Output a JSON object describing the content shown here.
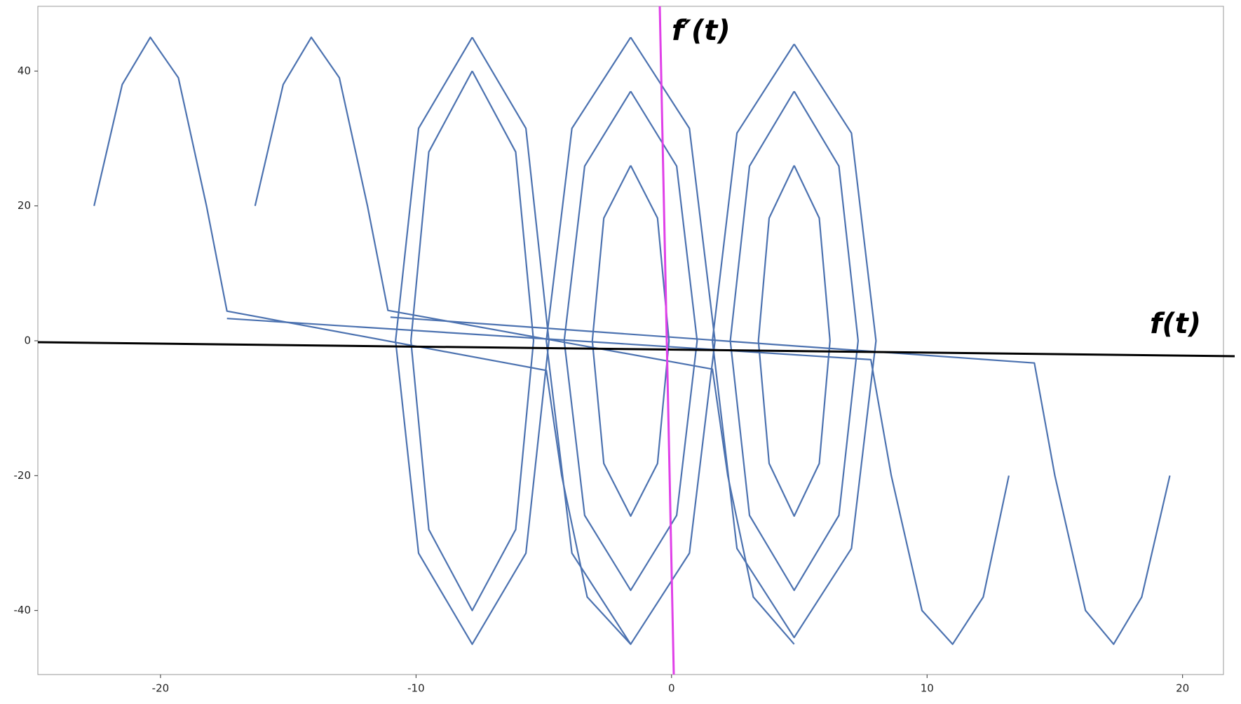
{
  "chart_data": {
    "type": "line",
    "color": "#4c72b0",
    "xlim": [
      -24.8,
      21.6
    ],
    "ylim": [
      -49.5,
      49.6
    ],
    "xticks": [
      -20,
      -10,
      0,
      10,
      20
    ],
    "yticks": [
      -40,
      -20,
      0,
      20,
      40
    ],
    "annotations": [
      "f′(t)",
      "f(t)"
    ],
    "series": [
      {
        "x": [
          -22.6,
          -21.5,
          -20.4,
          -19.3,
          -18.2,
          -17.4,
          -4.9,
          -4.3,
          -3.3,
          -1.6
        ],
        "values": [
          20,
          38,
          45,
          39,
          20,
          4.4,
          -4.4,
          -20,
          -38,
          -45
        ]
      },
      {
        "x": [
          -16.3,
          -15.2,
          -14.1,
          -13,
          -11.9,
          -11.1,
          1.6,
          2.2,
          3.2,
          4.8
        ],
        "values": [
          20,
          38,
          45,
          39,
          20,
          4.5,
          -4.2,
          -20,
          -38,
          -45
        ]
      },
      {
        "x": [
          -17.4,
          7.8,
          8.6,
          9.8,
          11,
          12.2,
          13.2
        ],
        "values": [
          3.3,
          -2.8,
          -20,
          -40,
          -45,
          -38,
          -20
        ]
      },
      {
        "x": [
          -11,
          14.2,
          15,
          16.2,
          17.3,
          18.4,
          19.5
        ],
        "values": [
          3.5,
          -3.3,
          -20,
          -40,
          -45,
          -38,
          -20
        ]
      },
      {
        "x": [
          -7.8,
          -5.7,
          -4.8,
          -5.7,
          -7.8,
          -9.9,
          -10.8,
          -9.9,
          -7.8
        ],
        "values": [
          45,
          31.5,
          0,
          -31.5,
          -45,
          -31.5,
          0,
          31.5,
          45
        ]
      },
      {
        "x": [
          -7.8,
          -6.1,
          -5.4,
          -6.1,
          -7.8,
          -9.5,
          -10.2,
          -9.5,
          -7.8
        ],
        "values": [
          40,
          28,
          0,
          -28,
          -40,
          -28,
          0,
          28,
          40
        ]
      },
      {
        "x": [
          -1.6,
          0.7,
          1.7,
          0.7,
          -1.6,
          -3.9,
          -4.9,
          -3.9,
          -1.6
        ],
        "values": [
          45,
          31.5,
          0,
          -31.5,
          -45,
          -31.5,
          0,
          31.5,
          45
        ]
      },
      {
        "x": [
          -1.6,
          0.2,
          1.0,
          0.2,
          -1.6,
          -3.4,
          -4.2,
          -3.4,
          -1.6
        ],
        "values": [
          37,
          25.9,
          0,
          -25.9,
          -37,
          -25.9,
          0,
          25.9,
          37
        ]
      },
      {
        "x": [
          -1.6,
          -0.55,
          -0.1,
          -0.55,
          -1.6,
          -2.65,
          -3.1,
          -2.65,
          -1.6
        ],
        "values": [
          26,
          18.2,
          0,
          -18.2,
          -26,
          -18.2,
          0,
          18.2,
          26
        ]
      },
      {
        "x": [
          4.8,
          7.04,
          8.0,
          7.04,
          4.8,
          2.56,
          1.6,
          2.56,
          4.8
        ],
        "values": [
          44,
          30.8,
          0,
          -30.8,
          -44,
          -30.8,
          0,
          30.8,
          44
        ]
      },
      {
        "x": [
          4.8,
          6.55,
          7.3,
          6.55,
          4.8,
          3.05,
          2.3,
          3.05,
          4.8
        ],
        "values": [
          37,
          25.9,
          0,
          -25.9,
          -37,
          -25.9,
          0,
          25.9,
          37
        ]
      },
      {
        "x": [
          4.8,
          5.78,
          6.2,
          5.78,
          4.8,
          3.82,
          3.4,
          3.82,
          4.8
        ],
        "values": [
          26,
          18.2,
          0,
          -18.2,
          -26,
          -18.2,
          0,
          18.2,
          26
        ]
      }
    ]
  }
}
